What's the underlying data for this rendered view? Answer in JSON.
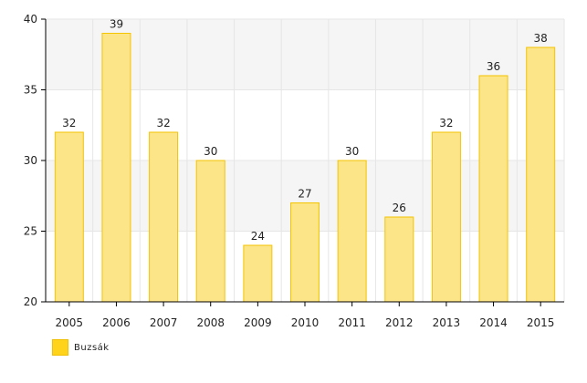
{
  "chart_data": {
    "type": "bar",
    "categories": [
      "2005",
      "2006",
      "2007",
      "2008",
      "2009",
      "2010",
      "2011",
      "2012",
      "2013",
      "2014",
      "2015"
    ],
    "series": [
      {
        "name": "Buzsák",
        "values": [
          32,
          39,
          32,
          30,
          24,
          27,
          30,
          26,
          32,
          36,
          38
        ]
      }
    ],
    "ylim": [
      20,
      40
    ],
    "yticks": [
      20,
      25,
      30,
      35,
      40
    ],
    "grid": true,
    "legend_position": "bottom-left",
    "colors": {
      "bar_fill": "#fce488",
      "bar_stroke": "#f5c400",
      "legend": "#ffd319",
      "band": "#f5f5f5",
      "grid": "#e6e6e6",
      "axis": "#000000"
    }
  }
}
